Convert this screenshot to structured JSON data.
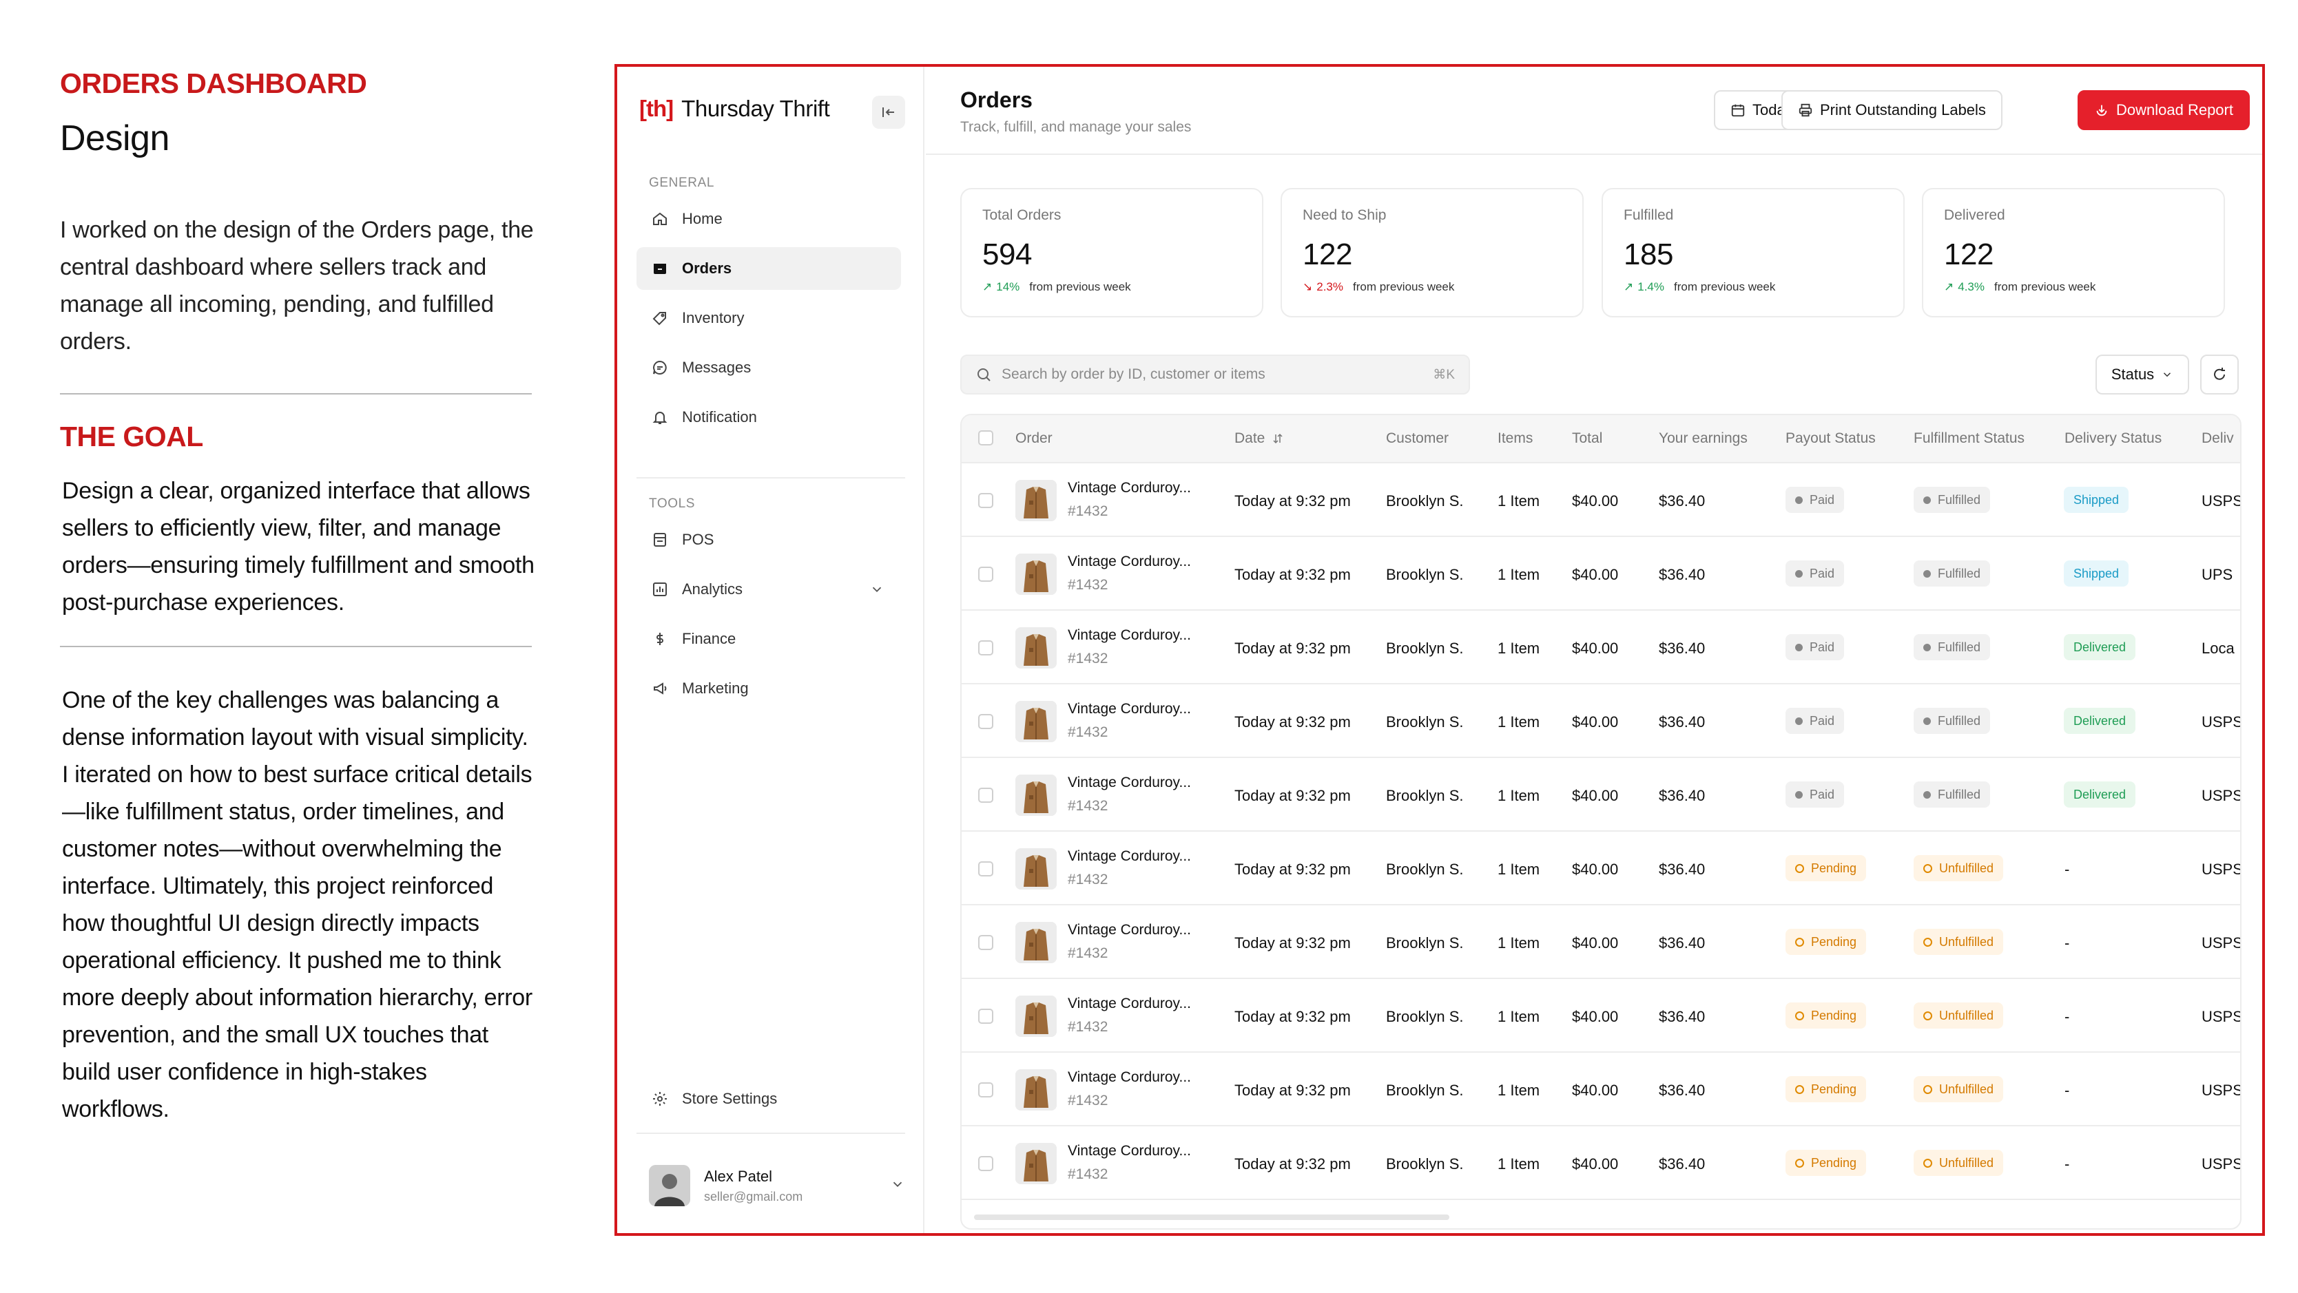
{
  "case_study": {
    "label": "ORDERS DASHBOARD",
    "title": "Design",
    "intro": "I worked on the design of the Orders page, the central dashboard where sellers track and manage all incoming, pending, and fulfilled orders.",
    "goal_label": "THE GOAL",
    "goal_text": "Design a clear, organized interface that allows sellers to efficiently view, filter, and manage orders—ensuring timely fulfillment and smooth post-purchase experiences.",
    "reflection": "One of the key challenges was balancing a dense information layout with visual simplicity. I iterated on how to best surface critical details—like fulfillment status, order timelines, and customer notes—without overwhelming the interface. Ultimately, this project reinforced how thoughtful UI design directly impacts operational efficiency. It pushed me to think more deeply about information hierarchy, error prevention, and the small UX touches that build user confidence in high-stakes workflows."
  },
  "app": {
    "brand_logo": "[th]",
    "brand_name": "Thursday Thrift",
    "sidebar": {
      "general_label": "GENERAL",
      "general_items": [
        {
          "label": "Home",
          "icon": "home-icon"
        },
        {
          "label": "Orders",
          "icon": "orders-icon",
          "active": true
        },
        {
          "label": "Inventory",
          "icon": "tag-icon"
        },
        {
          "label": "Messages",
          "icon": "message-icon"
        },
        {
          "label": "Notification",
          "icon": "bell-icon"
        }
      ],
      "tools_label": "TOOLS",
      "tools_items": [
        {
          "label": "POS",
          "icon": "pos-icon"
        },
        {
          "label": "Analytics",
          "icon": "chart-icon"
        },
        {
          "label": "Finance",
          "icon": "dollar-icon"
        },
        {
          "label": "Marketing",
          "icon": "megaphone-icon"
        }
      ],
      "store_settings": "Store Settings",
      "user": {
        "name": "Alex Patel",
        "email": "seller@gmail.com"
      }
    },
    "header": {
      "title": "Orders",
      "subtitle": "Track, fulfill, and manage your sales",
      "date_filter": "Today",
      "print_label": "Print Outstanding Labels",
      "download_label": "Download Report"
    },
    "stats": [
      {
        "label": "Total Orders",
        "value": "594",
        "pct": "14%",
        "direction": "up",
        "note": "from previous week"
      },
      {
        "label": "Need to Ship",
        "value": "122",
        "pct": "2.3%",
        "direction": "down",
        "note": "from previous week"
      },
      {
        "label": "Fulfilled",
        "value": "185",
        "pct": "1.4%",
        "direction": "up",
        "note": "from previous week"
      },
      {
        "label": "Delivered",
        "value": "122",
        "pct": "4.3%",
        "direction": "up",
        "note": "from previous week"
      }
    ],
    "search": {
      "placeholder": "Search by order by ID, customer or items",
      "shortcut": "⌘K"
    },
    "status_filter": "Status",
    "colors": {
      "accent": "#e5202b",
      "brand": "#d4171c",
      "positive": "#1f9d55",
      "negative": "#d4171c"
    },
    "table": {
      "columns": [
        "Order",
        "Date",
        "Customer",
        "Items",
        "Total",
        "Your earnings",
        "Payout Status",
        "Fulfillment Status",
        "Delivery Status",
        "Deliv"
      ],
      "rows": [
        {
          "name": "Vintage Corduroy...",
          "id": "#1432",
          "date": "Today at 9:32 pm",
          "customer": "Brooklyn S.",
          "items": "1 Item",
          "total": "$40.00",
          "earnings": "$36.40",
          "payout": "Paid",
          "fulfillment": "Fulfilled",
          "delivery": "Shipped",
          "carrier": "USPS"
        },
        {
          "name": "Vintage Corduroy...",
          "id": "#1432",
          "date": "Today at 9:32 pm",
          "customer": "Brooklyn S.",
          "items": "1 Item",
          "total": "$40.00",
          "earnings": "$36.40",
          "payout": "Paid",
          "fulfillment": "Fulfilled",
          "delivery": "Shipped",
          "carrier": "UPS"
        },
        {
          "name": "Vintage Corduroy...",
          "id": "#1432",
          "date": "Today at 9:32 pm",
          "customer": "Brooklyn S.",
          "items": "1 Item",
          "total": "$40.00",
          "earnings": "$36.40",
          "payout": "Paid",
          "fulfillment": "Fulfilled",
          "delivery": "Delivered",
          "carrier": "Loca"
        },
        {
          "name": "Vintage Corduroy...",
          "id": "#1432",
          "date": "Today at 9:32 pm",
          "customer": "Brooklyn S.",
          "items": "1 Item",
          "total": "$40.00",
          "earnings": "$36.40",
          "payout": "Paid",
          "fulfillment": "Fulfilled",
          "delivery": "Delivered",
          "carrier": "USPS"
        },
        {
          "name": "Vintage Corduroy...",
          "id": "#1432",
          "date": "Today at 9:32 pm",
          "customer": "Brooklyn S.",
          "items": "1 Item",
          "total": "$40.00",
          "earnings": "$36.40",
          "payout": "Paid",
          "fulfillment": "Fulfilled",
          "delivery": "Delivered",
          "carrier": "USPS"
        },
        {
          "name": "Vintage Corduroy...",
          "id": "#1432",
          "date": "Today at 9:32 pm",
          "customer": "Brooklyn S.",
          "items": "1 Item",
          "total": "$40.00",
          "earnings": "$36.40",
          "payout": "Pending",
          "fulfillment": "Unfulfilled",
          "delivery": "-",
          "carrier": "USPS"
        },
        {
          "name": "Vintage Corduroy...",
          "id": "#1432",
          "date": "Today at 9:32 pm",
          "customer": "Brooklyn S.",
          "items": "1 Item",
          "total": "$40.00",
          "earnings": "$36.40",
          "payout": "Pending",
          "fulfillment": "Unfulfilled",
          "delivery": "-",
          "carrier": "USPS"
        },
        {
          "name": "Vintage Corduroy...",
          "id": "#1432",
          "date": "Today at 9:32 pm",
          "customer": "Brooklyn S.",
          "items": "1 Item",
          "total": "$40.00",
          "earnings": "$36.40",
          "payout": "Pending",
          "fulfillment": "Unfulfilled",
          "delivery": "-",
          "carrier": "USPS"
        },
        {
          "name": "Vintage Corduroy...",
          "id": "#1432",
          "date": "Today at 9:32 pm",
          "customer": "Brooklyn S.",
          "items": "1 Item",
          "total": "$40.00",
          "earnings": "$36.40",
          "payout": "Pending",
          "fulfillment": "Unfulfilled",
          "delivery": "-",
          "carrier": "USPS"
        },
        {
          "name": "Vintage Corduroy...",
          "id": "#1432",
          "date": "Today at 9:32 pm",
          "customer": "Brooklyn S.",
          "items": "1 Item",
          "total": "$40.00",
          "earnings": "$36.40",
          "payout": "Pending",
          "fulfillment": "Unfulfilled",
          "delivery": "-",
          "carrier": "USPS"
        }
      ]
    }
  }
}
